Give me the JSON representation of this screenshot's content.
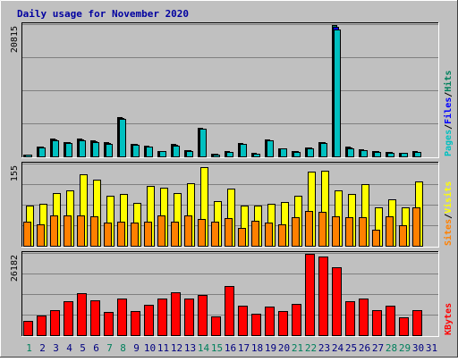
{
  "title": "Daily usage for November 2020",
  "colors": {
    "background": "#c0c0c0",
    "panel_bg": "#c0c0c0",
    "title": "#0000a0",
    "hits": "#00805c",
    "files": "#0000ff",
    "pages": "#00c0c0",
    "visits": "#ffff00",
    "sites": "#ff8000",
    "kbytes": "#ff0000",
    "weekend": "#00805c",
    "weekday": "#000080"
  },
  "chart_data": [
    {
      "type": "bar",
      "panel": "hits-files-pages",
      "ylabel_top": "20815",
      "ylim": [
        0,
        20815
      ],
      "legend": [
        "Pages",
        "/",
        "Files",
        "/",
        "Hits"
      ],
      "categories": [
        "1",
        "2",
        "3",
        "4",
        "5",
        "6",
        "7",
        "8",
        "9",
        "10",
        "11",
        "12",
        "13",
        "14",
        "15",
        "16",
        "17",
        "18",
        "19",
        "20",
        "21",
        "22",
        "23",
        "24",
        "25",
        "26",
        "27",
        "28",
        "29",
        "30",
        "31"
      ],
      "series": [
        {
          "name": "Hits",
          "values": [
            300,
            1600,
            2800,
            2300,
            2800,
            2500,
            2200,
            6200,
            2000,
            1700,
            900,
            1900,
            1000,
            4500,
            400,
            800,
            2100,
            500,
            2700,
            1300,
            800,
            1400,
            2300,
            20700,
            1500,
            1100,
            800,
            700,
            600,
            800,
            0
          ]
        },
        {
          "name": "Files",
          "values": [
            300,
            1500,
            2700,
            2200,
            2700,
            2400,
            2100,
            6100,
            1900,
            1600,
            850,
            1800,
            950,
            4400,
            380,
            750,
            2000,
            450,
            2600,
            1250,
            780,
            1350,
            2200,
            20400,
            1400,
            1050,
            780,
            650,
            580,
            750,
            0
          ]
        },
        {
          "name": "Pages",
          "values": [
            250,
            1400,
            2600,
            2100,
            2600,
            2300,
            2000,
            5900,
            1800,
            1500,
            800,
            1700,
            900,
            4300,
            350,
            700,
            1900,
            400,
            2500,
            1200,
            750,
            1300,
            2100,
            20000,
            1300,
            1000,
            750,
            600,
            550,
            700,
            0
          ]
        }
      ]
    },
    {
      "type": "bar",
      "panel": "visits-sites",
      "ylabel_top": "155",
      "ylim": [
        0,
        155
      ],
      "legend": [
        "Sites",
        "/",
        "Visits"
      ],
      "categories": [
        "1",
        "2",
        "3",
        "4",
        "5",
        "6",
        "7",
        "8",
        "9",
        "10",
        "11",
        "12",
        "13",
        "14",
        "15",
        "16",
        "17",
        "18",
        "19",
        "20",
        "21",
        "22",
        "23",
        "24",
        "25",
        "26",
        "27",
        "28",
        "29",
        "30",
        "31"
      ],
      "series": [
        {
          "name": "Visits",
          "values": [
            75,
            80,
            100,
            104,
            135,
            125,
            94,
            98,
            81,
            113,
            110,
            100,
            118,
            148,
            84,
            108,
            75,
            75,
            79,
            82,
            95,
            140,
            142,
            104,
            98,
            116,
            72,
            87,
            73,
            121,
            0
          ]
        },
        {
          "name": "Sites",
          "values": [
            45,
            40,
            58,
            58,
            58,
            56,
            44,
            45,
            44,
            45,
            58,
            45,
            58,
            50,
            46,
            52,
            34,
            47,
            44,
            40,
            54,
            65,
            64,
            56,
            54,
            54,
            31,
            56,
            39,
            72,
            0
          ]
        }
      ]
    },
    {
      "type": "bar",
      "panel": "kbytes",
      "ylabel_top": "26182",
      "ylim": [
        0,
        26182
      ],
      "legend": [
        "KBytes"
      ],
      "categories": [
        "1",
        "2",
        "3",
        "4",
        "5",
        "6",
        "7",
        "8",
        "9",
        "10",
        "11",
        "12",
        "13",
        "14",
        "15",
        "16",
        "17",
        "18",
        "19",
        "20",
        "21",
        "22",
        "23",
        "24",
        "25",
        "26",
        "27",
        "28",
        "29",
        "30",
        "31"
      ],
      "series": [
        {
          "name": "KBytes",
          "values": [
            4600,
            6200,
            8000,
            10800,
            13300,
            11200,
            7400,
            11600,
            7700,
            9800,
            11700,
            13800,
            11600,
            12900,
            6100,
            15600,
            9400,
            6900,
            9000,
            7700,
            9900,
            26000,
            25000,
            21600,
            10700,
            11800,
            8100,
            9500,
            5600,
            8000,
            0
          ]
        }
      ]
    }
  ],
  "weekend_days": [
    "1",
    "7",
    "8",
    "14",
    "15",
    "21",
    "22",
    "28",
    "29"
  ]
}
